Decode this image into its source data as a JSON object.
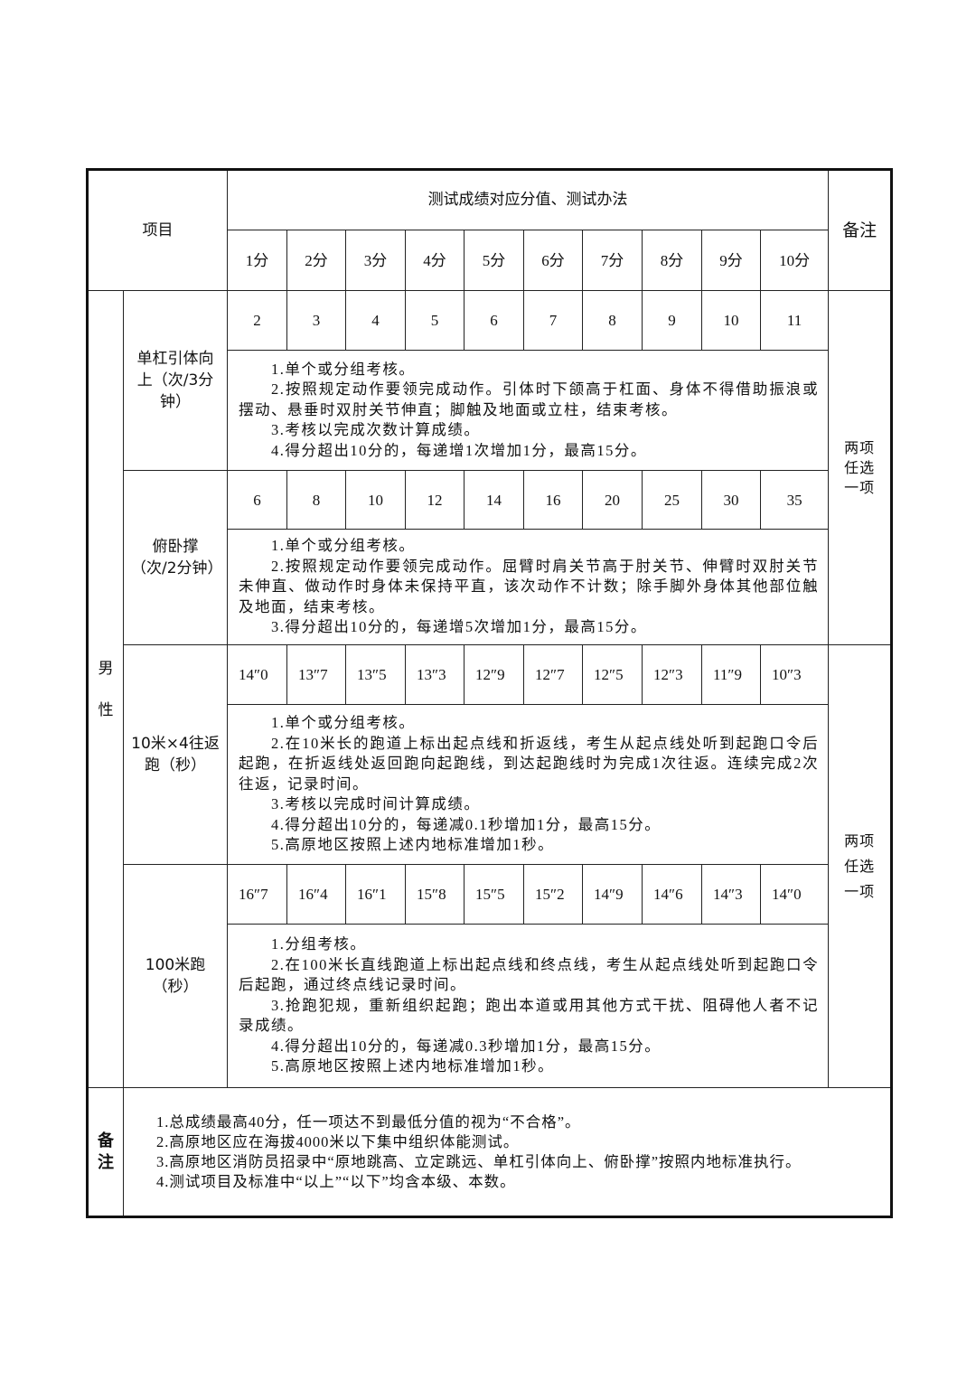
{
  "header": {
    "item_label": "项目",
    "title": "测试成绩对应分值、测试办法",
    "remark_label": "备注",
    "scores": [
      "1分",
      "2分",
      "3分",
      "4分",
      "5分",
      "6分",
      "7分",
      "8分",
      "9分",
      "10分"
    ]
  },
  "gender": "男性",
  "groups": [
    {
      "remark": "两项任选一项",
      "items": [
        {
          "name": "单杠引体向上（次/3分钟）",
          "values": [
            "2",
            "3",
            "4",
            "5",
            "6",
            "7",
            "8",
            "9",
            "10",
            "11"
          ],
          "rules": [
            "1.单个或分组考核。",
            "2.按照规定动作要领完成动作。引体时下颌高于杠面、身体不得借助振浪或摆动、悬垂时双肘关节伸直；脚触及地面或立柱，结束考核。",
            "3.考核以完成次数计算成绩。",
            "4.得分超出10分的，每递增1次增加1分，最高15分。"
          ]
        },
        {
          "name": "俯卧撑（次/2分钟）",
          "values": [
            "6",
            "8",
            "10",
            "12",
            "14",
            "16",
            "20",
            "25",
            "30",
            "35"
          ],
          "rules": [
            "1.单个或分组考核。",
            "2.按照规定动作要领完成动作。屈臂时肩关节高于肘关节、伸臂时双肘关节未伸直、做动作时身体未保持平直，该次动作不计数；除手脚外身体其他部位触及地面，结束考核。",
            "3.得分超出10分的，每递增5次增加1分，最高15分。"
          ]
        }
      ]
    },
    {
      "remark": "两项任选一项",
      "items": [
        {
          "name": "10米×4往返跑（秒）",
          "values": [
            "14″0",
            "13″7",
            "13″5",
            "13″3",
            "12″9",
            "12″7",
            "12″5",
            "12″3",
            "11″9",
            "10″3"
          ],
          "rules": [
            "1.单个或分组考核。",
            "2.在10米长的跑道上标出起点线和折返线，考生从起点线处听到起跑口令后起跑，在折返线处返回跑向起跑线，到达起跑线时为完成1次往返。连续完成2次往返，记录时间。",
            "3.考核以完成时间计算成绩。",
            "4.得分超出10分的，每递减0.1秒增加1分，最高15分。",
            "5.高原地区按照上述内地标准增加1秒。"
          ]
        },
        {
          "name": "100米跑（秒）",
          "values": [
            "16″7",
            "16″4",
            "16″1",
            "15″8",
            "15″5",
            "15″2",
            "14″9",
            "14″6",
            "14″3",
            "14″0"
          ],
          "rules": [
            "1.分组考核。",
            "2.在100米长直线跑道上标出起点线和终点线，考生从起点线处听到起跑口令后起跑，通过终点线记录时间。",
            "3.抢跑犯规，重新组织起跑；跑出本道或用其他方式干扰、阻碍他人者不记录成绩。",
            "4.得分超出10分的，每递减0.3秒增加1分，最高15分。",
            "5.高原地区按照上述内地标准增加1秒。"
          ]
        }
      ]
    }
  ],
  "notes": {
    "label": "备注",
    "items": [
      "1.总成绩最高40分，任一项达不到最低分值的视为“不合格”。",
      "2.高原地区应在海拔4000米以下集中组织体能测试。",
      "3.高原地区消防员招录中“原地跳高、立定跳远、单杠引体向上、俯卧撑”按照内地标准执行。",
      "4.测试项目及标准中“以上”“以下”均含本级、本数。"
    ]
  }
}
